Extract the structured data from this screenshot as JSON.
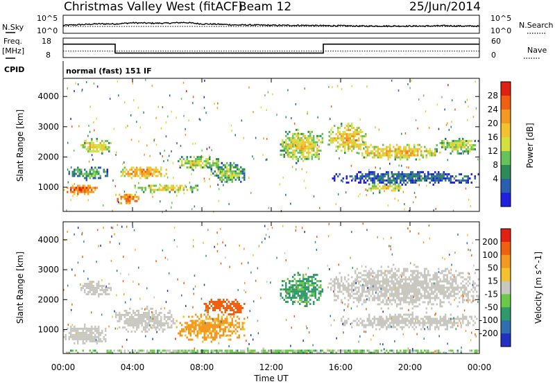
{
  "header": {
    "station": "Christmas Valley West (fitACF)",
    "beam": "Beam 12",
    "date": "25/Jun/2014"
  },
  "strip_labels": {
    "nsky": "N.Sky",
    "nsearch": "N.Search",
    "freq_top": "Freq.",
    "freq_unit": "[MHz]",
    "nave": "Nave",
    "cpid": "CPID",
    "cpid_value": "normal (fast) 151 IF",
    "noise_ticks_left": [
      "10^5",
      "10^0"
    ],
    "noise_ticks_right": [
      "10^5",
      "10^0"
    ],
    "freq_ticks": [
      "18",
      "8"
    ],
    "nave_ticks": [
      "60",
      "0"
    ]
  },
  "chart_data": [
    {
      "type": "line",
      "name": "noise",
      "series": [
        {
          "name": "N.Sky",
          "x": [
            0,
            1,
            2,
            3,
            4,
            5,
            6,
            7,
            8,
            9,
            10,
            11,
            12,
            13,
            14,
            15,
            16,
            17,
            18,
            19,
            20,
            21,
            22,
            23,
            24
          ],
          "values": [
            2.2,
            2.4,
            2.6,
            2.6,
            2.9,
            2.8,
            2.8,
            3.0,
            2.6,
            2.5,
            2.3,
            2.3,
            2.2,
            2.2,
            2.2,
            2.1,
            2.1,
            2.0,
            2.0,
            2.0,
            2.0,
            2.0,
            2.1,
            2.0,
            2.0
          ]
        },
        {
          "name": "N.Search",
          "x": [
            0,
            6,
            12,
            18,
            24
          ],
          "values": [
            1.9,
            1.9,
            1.9,
            1.9,
            1.9
          ]
        }
      ],
      "ylim_log": [
        0,
        5
      ]
    },
    {
      "type": "line",
      "name": "frequency",
      "series": [
        {
          "name": "Freq.",
          "x": [
            0,
            3,
            3,
            15,
            15,
            24
          ],
          "values": [
            14.9,
            14.9,
            10.3,
            10.3,
            14.9,
            14.9
          ]
        },
        {
          "name": "Nave",
          "x": [
            0,
            24
          ],
          "values": [
            20,
            20
          ]
        }
      ],
      "ylim_freq": [
        8,
        18
      ],
      "ylim_nave": [
        0,
        60
      ]
    },
    {
      "type": "heatmap",
      "name": "power",
      "xlabel": "",
      "ylabel": "Slant Range [km]",
      "xlim": [
        0,
        24
      ],
      "ylim": [
        200,
        4600
      ],
      "yticks": [
        1000,
        2000,
        3000,
        4000
      ],
      "colorbar": {
        "label": "Power [dB]",
        "ticks": [
          "28",
          "24",
          "20",
          "16",
          "12",
          "8",
          "4"
        ],
        "colors": [
          "#2020e0",
          "#2a5fb0",
          "#2e8b57",
          "#66c35a",
          "#d4e040",
          "#f2c230",
          "#f29a20",
          "#f06010",
          "#e02010"
        ]
      },
      "regions": [
        {
          "t": [
            0.0,
            2.0
          ],
          "r": [
            750,
            1150
          ],
          "level": 26
        },
        {
          "t": [
            0.3,
            2.6
          ],
          "r": [
            1250,
            1750
          ],
          "level": 12
        },
        {
          "t": [
            1.0,
            2.8
          ],
          "r": [
            2100,
            2700
          ],
          "level": 18
        },
        {
          "t": [
            2.9,
            4.5
          ],
          "r": [
            450,
            850
          ],
          "level": 24
        },
        {
          "t": [
            3.2,
            6.0
          ],
          "r": [
            1300,
            1750
          ],
          "level": 22
        },
        {
          "t": [
            4.0,
            8.0
          ],
          "r": [
            850,
            1150
          ],
          "level": 18
        },
        {
          "t": [
            6.5,
            9.0
          ],
          "r": [
            1600,
            2100
          ],
          "level": 16
        },
        {
          "t": [
            8.5,
            10.5
          ],
          "r": [
            1150,
            1900
          ],
          "level": 14
        },
        {
          "t": [
            12.5,
            15.0
          ],
          "r": [
            1800,
            3000
          ],
          "level": 18
        },
        {
          "t": [
            15.3,
            17.5
          ],
          "r": [
            2100,
            3200
          ],
          "level": 20
        },
        {
          "t": [
            17.0,
            21.5
          ],
          "r": [
            1900,
            2500
          ],
          "level": 20
        },
        {
          "t": [
            17.5,
            19.5
          ],
          "r": [
            850,
            1200
          ],
          "level": 18
        },
        {
          "t": [
            21.5,
            24.0
          ],
          "r": [
            2100,
            2700
          ],
          "level": 16
        },
        {
          "t": [
            15.5,
            24.0
          ],
          "r": [
            1100,
            1600
          ],
          "level": 8
        }
      ]
    },
    {
      "type": "heatmap",
      "name": "velocity",
      "xlabel": "Time UT",
      "ylabel": "Slant Range [km]",
      "xlim": [
        0,
        24
      ],
      "ylim": [
        200,
        4600
      ],
      "xticks": [
        "00:00",
        "04:00",
        "08:00",
        "12:00",
        "16:00",
        "20:00",
        "00:00"
      ],
      "yticks": [
        1000,
        2000,
        3000,
        4000
      ],
      "colorbar": {
        "label": "Velocity [m s^-1]",
        "ticks": [
          "200",
          "100",
          "50",
          "15",
          "-15",
          "-50",
          "-100",
          "-200"
        ],
        "colors": [
          "#2030c0",
          "#2f6fb0",
          "#2e9a6a",
          "#6cc84a",
          "#c8c8c0",
          "#f2c230",
          "#f29a20",
          "#f06010",
          "#e02010"
        ]
      },
      "regions": [
        {
          "t": [
            0.0,
            2.5
          ],
          "r": [
            500,
            1200
          ],
          "v": 0
        },
        {
          "t": [
            1.0,
            2.8
          ],
          "r": [
            2100,
            2700
          ],
          "v": 0
        },
        {
          "t": [
            3.0,
            6.5
          ],
          "r": [
            900,
            1800
          ],
          "v": 0
        },
        {
          "t": [
            6.5,
            10.5
          ],
          "r": [
            600,
            1600
          ],
          "v": -60
        },
        {
          "t": [
            8.0,
            10.5
          ],
          "r": [
            1500,
            2100
          ],
          "v": -150
        },
        {
          "t": [
            12.5,
            15.0
          ],
          "r": [
            1800,
            3000
          ],
          "v": 40
        },
        {
          "t": [
            15.3,
            24.0
          ],
          "r": [
            1700,
            3200
          ],
          "v": 0
        },
        {
          "t": [
            16.0,
            24.0
          ],
          "r": [
            1000,
            1600
          ],
          "v": 0
        },
        {
          "t": [
            0.0,
            24.0
          ],
          "r": [
            200,
            400
          ],
          "v": 20
        }
      ]
    }
  ]
}
